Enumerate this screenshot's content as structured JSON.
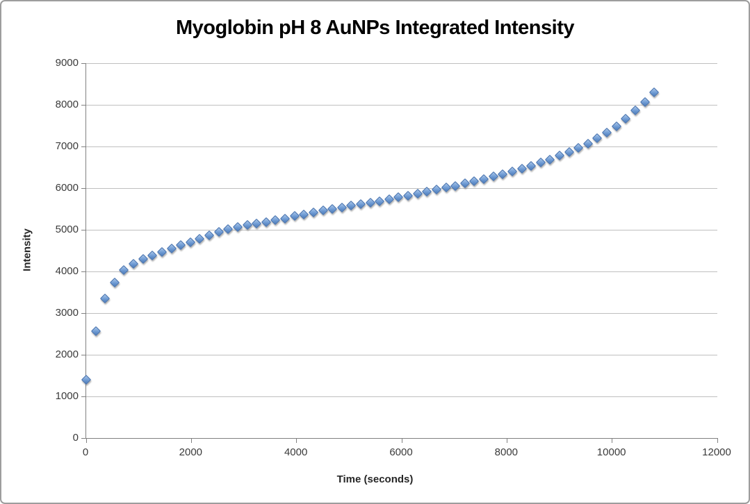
{
  "chart_data": {
    "type": "scatter",
    "title": "Myoglobin pH 8 AuNPs Integrated Intensity",
    "xlabel": "Time (seconds)",
    "ylabel": "Intensity",
    "xlim": [
      0,
      12000
    ],
    "ylim": [
      0,
      9000
    ],
    "x_ticks": [
      0,
      2000,
      4000,
      6000,
      8000,
      10000,
      12000
    ],
    "y_ticks": [
      0,
      1000,
      2000,
      3000,
      4000,
      5000,
      6000,
      7000,
      8000,
      9000
    ],
    "grid": "horizontal-only",
    "legend_position": "none",
    "marker": {
      "shape": "diamond",
      "fill_light": "#a9c6ea",
      "fill_dark": "#4a7ab8",
      "border_color": "#3f6cab"
    },
    "series": [
      {
        "name": "Integrated Intensity",
        "x": [
          0,
          180,
          360,
          540,
          720,
          900,
          1080,
          1260,
          1440,
          1620,
          1800,
          1980,
          2160,
          2340,
          2520,
          2700,
          2880,
          3060,
          3240,
          3420,
          3600,
          3780,
          3960,
          4140,
          4320,
          4500,
          4680,
          4860,
          5040,
          5220,
          5400,
          5580,
          5760,
          5940,
          6120,
          6300,
          6480,
          6660,
          6840,
          7020,
          7200,
          7380,
          7560,
          7740,
          7920,
          8100,
          8280,
          8460,
          8640,
          8820,
          9000,
          9180,
          9360,
          9540,
          9720,
          9900,
          10080,
          10260,
          10440,
          10620,
          10800
        ],
        "y": [
          1400,
          2570,
          3350,
          3730,
          4030,
          4180,
          4300,
          4380,
          4460,
          4550,
          4630,
          4700,
          4780,
          4870,
          4950,
          5010,
          5060,
          5110,
          5150,
          5190,
          5230,
          5270,
          5330,
          5370,
          5420,
          5460,
          5500,
          5540,
          5580,
          5620,
          5650,
          5690,
          5730,
          5780,
          5820,
          5870,
          5920,
          5960,
          6010,
          6050,
          6110,
          6160,
          6220,
          6280,
          6330,
          6400,
          6470,
          6540,
          6610,
          6690,
          6780,
          6870,
          6960,
          7070,
          7200,
          7340,
          7490,
          7660,
          7860,
          8070,
          8300
        ]
      }
    ]
  },
  "colors": {
    "background": "#ffffff",
    "frame_border": "#9d9d9d",
    "gridline": "#bfbfbf",
    "axis_line": "#808080",
    "tick_label": "#3a3a3a",
    "title": "#000000"
  }
}
